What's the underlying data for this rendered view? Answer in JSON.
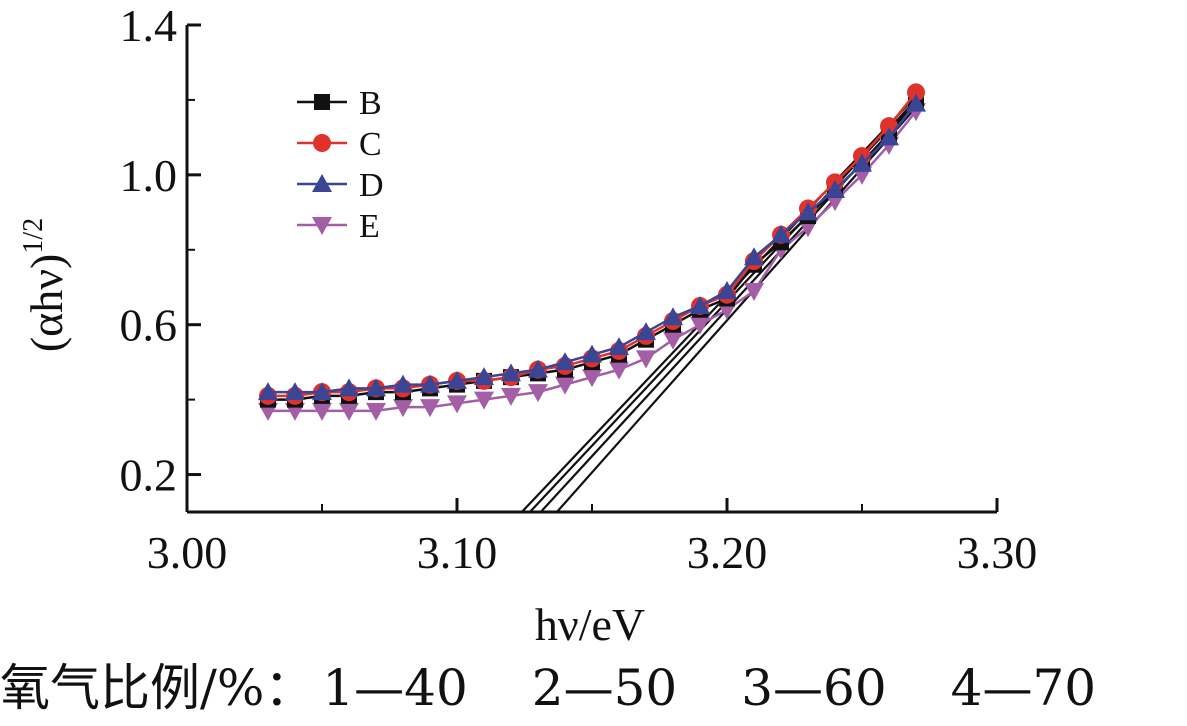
{
  "chart_data": {
    "type": "line",
    "xlabel": "hν/eV",
    "ylabel": "(αhν)",
    "ylabel_superscript": "1/2",
    "xlim": [
      3.0,
      3.3
    ],
    "ylim": [
      0.1,
      1.4
    ],
    "x_ticks": [
      "3.00",
      "3.10",
      "3.20",
      "3.30"
    ],
    "y_ticks": [
      "0.2",
      "0.6",
      "1.0",
      "1.4"
    ],
    "legend_position": "top-left",
    "x": [
      3.03,
      3.04,
      3.05,
      3.06,
      3.07,
      3.08,
      3.09,
      3.1,
      3.11,
      3.12,
      3.13,
      3.14,
      3.15,
      3.16,
      3.17,
      3.18,
      3.19,
      3.2,
      3.21,
      3.22,
      3.23,
      3.24,
      3.25,
      3.26,
      3.27
    ],
    "series": [
      {
        "name": "B",
        "color": "#111111",
        "marker": "square",
        "values": [
          0.4,
          0.4,
          0.41,
          0.41,
          0.42,
          0.42,
          0.43,
          0.44,
          0.45,
          0.46,
          0.47,
          0.48,
          0.5,
          0.52,
          0.56,
          0.6,
          0.64,
          0.67,
          0.76,
          0.82,
          0.89,
          0.96,
          1.03,
          1.11,
          1.2
        ]
      },
      {
        "name": "C",
        "color": "#e0322c",
        "marker": "circle",
        "values": [
          0.41,
          0.41,
          0.42,
          0.42,
          0.43,
          0.43,
          0.44,
          0.45,
          0.45,
          0.46,
          0.48,
          0.49,
          0.51,
          0.53,
          0.57,
          0.61,
          0.65,
          0.68,
          0.77,
          0.84,
          0.91,
          0.98,
          1.05,
          1.13,
          1.22
        ]
      },
      {
        "name": "D",
        "color": "#3a4596",
        "marker": "triangle-up",
        "values": [
          0.42,
          0.42,
          0.42,
          0.43,
          0.43,
          0.44,
          0.44,
          0.45,
          0.46,
          0.47,
          0.48,
          0.5,
          0.52,
          0.54,
          0.58,
          0.62,
          0.65,
          0.69,
          0.78,
          0.84,
          0.9,
          0.96,
          1.03,
          1.1,
          1.19
        ]
      },
      {
        "name": "E",
        "color": "#a35ea6",
        "marker": "triangle-down",
        "values": [
          0.37,
          0.37,
          0.37,
          0.37,
          0.37,
          0.38,
          0.38,
          0.39,
          0.4,
          0.41,
          0.42,
          0.44,
          0.46,
          0.48,
          0.51,
          0.56,
          0.6,
          0.64,
          0.69,
          0.8,
          0.86,
          0.93,
          1.0,
          1.08,
          1.17
        ]
      }
    ],
    "fit_lines": [
      {
        "x": [
          3.124,
          3.27
        ],
        "y": [
          0.1,
          1.21
        ]
      },
      {
        "x": [
          3.127,
          3.27
        ],
        "y": [
          0.1,
          1.2
        ]
      },
      {
        "x": [
          3.131,
          3.27
        ],
        "y": [
          0.1,
          1.19
        ]
      },
      {
        "x": [
          3.137,
          3.27
        ],
        "y": [
          0.1,
          1.18
        ]
      }
    ]
  },
  "caption": {
    "label": "氧气比例/%：",
    "items": [
      "1—40",
      "2—50",
      "3—60",
      "4—70"
    ]
  }
}
